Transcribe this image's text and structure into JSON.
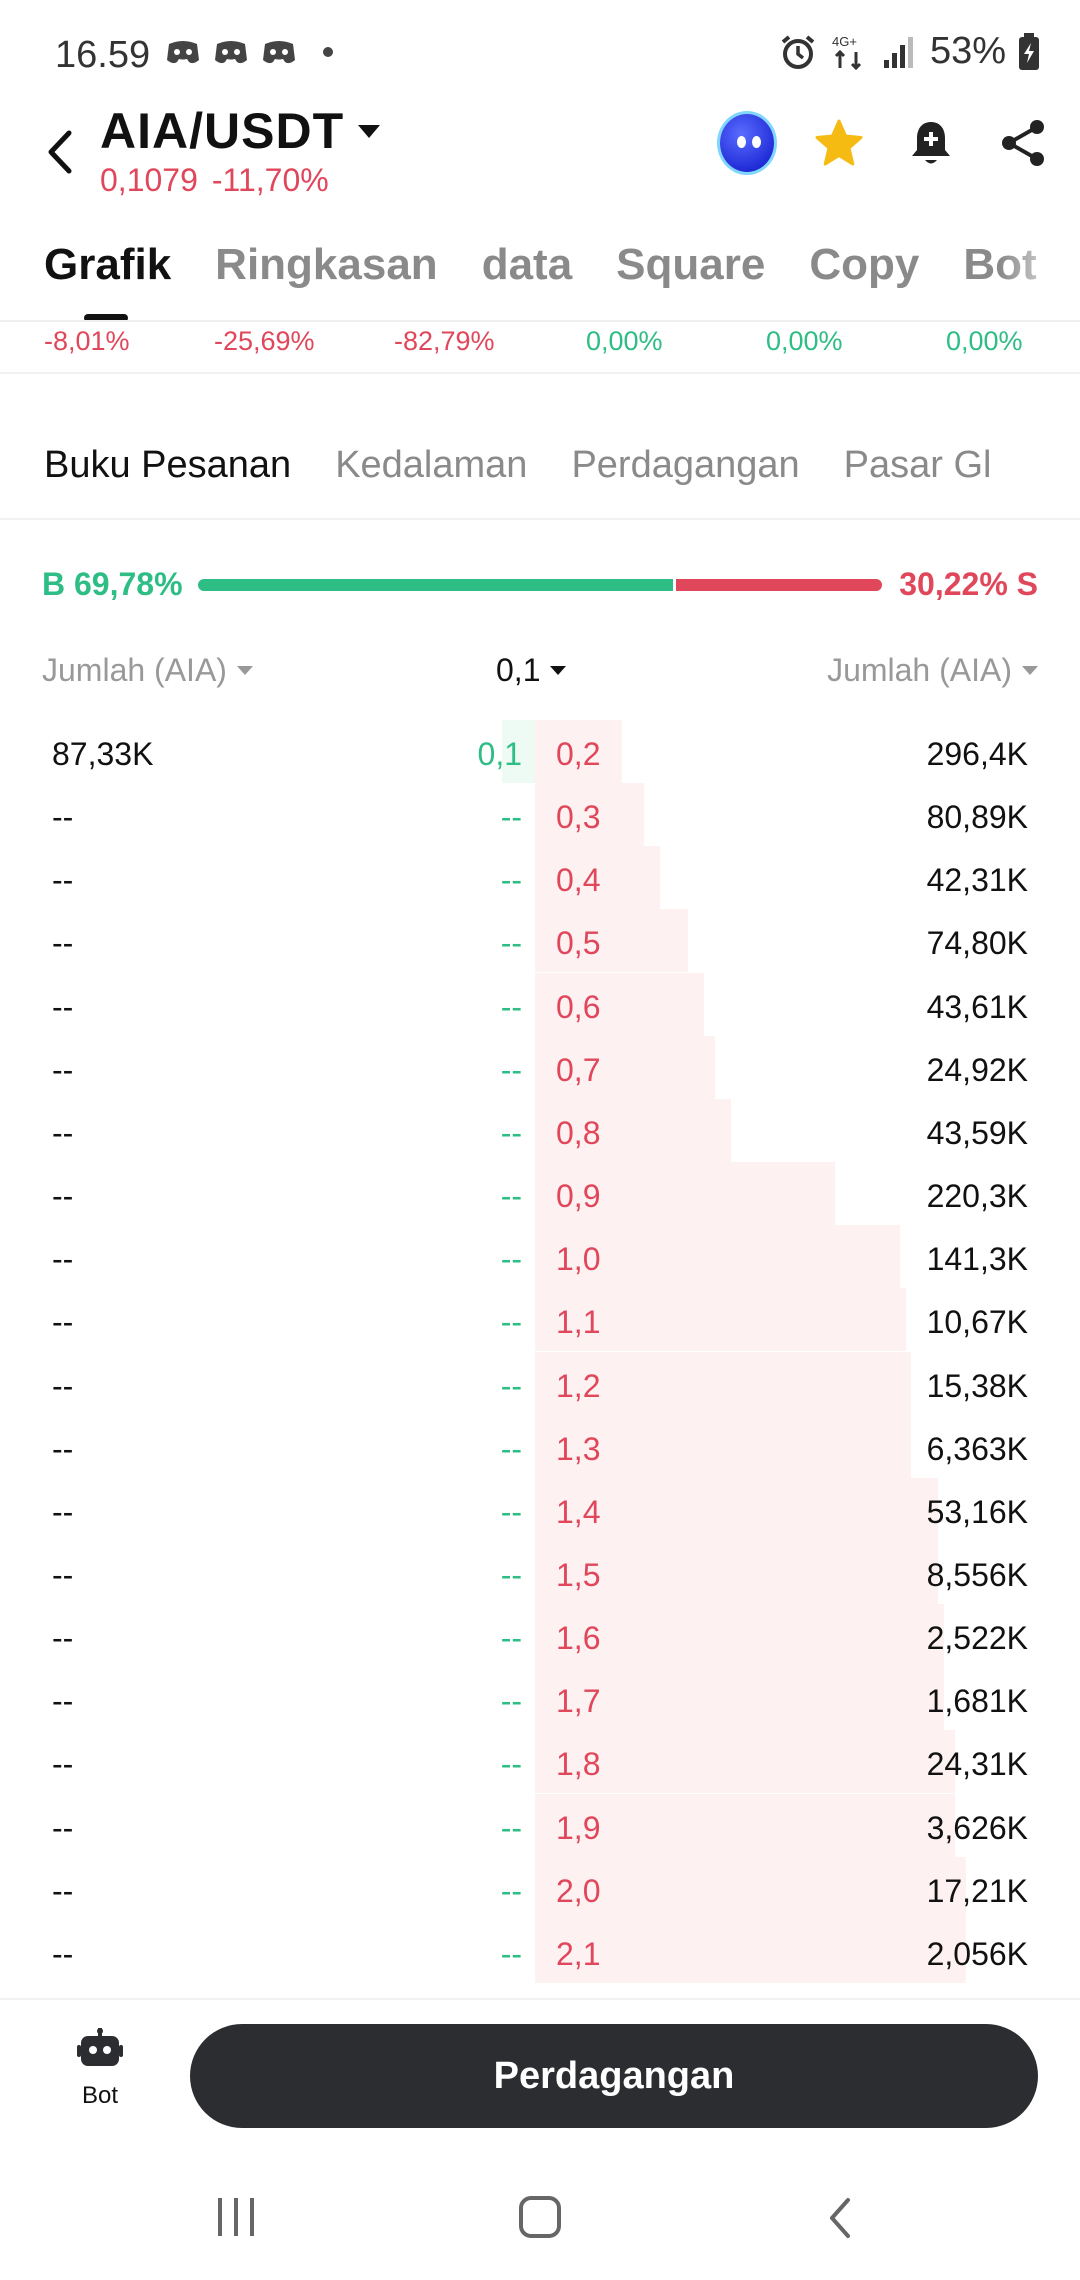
{
  "status_bar": {
    "time": "16.59",
    "network": "4G+",
    "battery": "53%"
  },
  "header": {
    "pair": "AIA/USDT",
    "price": "0,1079",
    "change": "-11,70%",
    "icons": [
      "avatar-icon",
      "star-icon",
      "bell-plus-icon",
      "share-icon"
    ]
  },
  "main_tabs": [
    {
      "label": "Grafik",
      "active": true
    },
    {
      "label": "Ringkasan"
    },
    {
      "label": "data"
    },
    {
      "label": "Square"
    },
    {
      "label": "Copy"
    },
    {
      "label": "Bot"
    }
  ],
  "change_row": [
    {
      "value": "-8,01%",
      "color": "#e0475b"
    },
    {
      "value": "-25,69%",
      "color": "#e0475b"
    },
    {
      "value": "-82,79%",
      "color": "#e0475b"
    },
    {
      "value": "0,00%",
      "color": "#2ebd85"
    },
    {
      "value": "0,00%",
      "color": "#2ebd85"
    },
    {
      "value": "0,00%",
      "color": "#2ebd85"
    }
  ],
  "sub_tabs": [
    {
      "label": "Buku Pesanan",
      "active": true
    },
    {
      "label": "Kedalaman"
    },
    {
      "label": "Perdagangan"
    },
    {
      "label": "Pasar Gl"
    }
  ],
  "ratio": {
    "buy_label": "B 69,78%",
    "sell_label": "30,22% S",
    "buy_fraction": 0.6978
  },
  "orderbook_header": {
    "bid_amount": "Jumlah (AIA)",
    "precision": "0,1",
    "ask_amount": "Jumlah (AIA)"
  },
  "orderbook": {
    "rows": [
      {
        "bid_amount": "87,33K",
        "bid_price": "0,1",
        "ask_price": "0,2",
        "ask_amount": "296,4K",
        "ask_depth": 0.16,
        "bid_depth": 0.06
      },
      {
        "bid_amount": "--",
        "bid_price": "--",
        "ask_price": "0,3",
        "ask_amount": "80,89K",
        "ask_depth": 0.2
      },
      {
        "bid_amount": "--",
        "bid_price": "--",
        "ask_price": "0,4",
        "ask_amount": "42,31K",
        "ask_depth": 0.23
      },
      {
        "bid_amount": "--",
        "bid_price": "--",
        "ask_price": "0,5",
        "ask_amount": "74,80K",
        "ask_depth": 0.28
      },
      {
        "bid_amount": "--",
        "bid_price": "--",
        "ask_price": "0,6",
        "ask_amount": "43,61K",
        "ask_depth": 0.31
      },
      {
        "bid_amount": "--",
        "bid_price": "--",
        "ask_price": "0,7",
        "ask_amount": "24,92K",
        "ask_depth": 0.33
      },
      {
        "bid_amount": "--",
        "bid_price": "--",
        "ask_price": "0,8",
        "ask_amount": "43,59K",
        "ask_depth": 0.36
      },
      {
        "bid_amount": "--",
        "bid_price": "--",
        "ask_price": "0,9",
        "ask_amount": "220,3K",
        "ask_depth": 0.55
      },
      {
        "bid_amount": "--",
        "bid_price": "--",
        "ask_price": "1,0",
        "ask_amount": "141,3K",
        "ask_depth": 0.67
      },
      {
        "bid_amount": "--",
        "bid_price": "--",
        "ask_price": "1,1",
        "ask_amount": "10,67K",
        "ask_depth": 0.68
      },
      {
        "bid_amount": "--",
        "bid_price": "--",
        "ask_price": "1,2",
        "ask_amount": "15,38K",
        "ask_depth": 0.69
      },
      {
        "bid_amount": "--",
        "bid_price": "--",
        "ask_price": "1,3",
        "ask_amount": "6,363K",
        "ask_depth": 0.69
      },
      {
        "bid_amount": "--",
        "bid_price": "--",
        "ask_price": "1,4",
        "ask_amount": "53,16K",
        "ask_depth": 0.74
      },
      {
        "bid_amount": "--",
        "bid_price": "--",
        "ask_price": "1,5",
        "ask_amount": "8,556K",
        "ask_depth": 0.74
      },
      {
        "bid_amount": "--",
        "bid_price": "--",
        "ask_price": "1,6",
        "ask_amount": "2,522K",
        "ask_depth": 0.75
      },
      {
        "bid_amount": "--",
        "bid_price": "--",
        "ask_price": "1,7",
        "ask_amount": "1,681K",
        "ask_depth": 0.75
      },
      {
        "bid_amount": "--",
        "bid_price": "--",
        "ask_price": "1,8",
        "ask_amount": "24,31K",
        "ask_depth": 0.77
      },
      {
        "bid_amount": "--",
        "bid_price": "--",
        "ask_price": "1,9",
        "ask_amount": "3,626K",
        "ask_depth": 0.77
      },
      {
        "bid_amount": "--",
        "bid_price": "--",
        "ask_price": "2,0",
        "ask_amount": "17,21K",
        "ask_depth": 0.79
      },
      {
        "bid_amount": "--",
        "bid_price": "--",
        "ask_price": "2,1",
        "ask_amount": "2,056K",
        "ask_depth": 0.79
      }
    ]
  },
  "action_bar": {
    "bot_label": "Bot",
    "trade_label": "Perdagangan"
  },
  "colors": {
    "buy": "#2ebd85",
    "sell": "#e0475b",
    "ask_depth_bg": "#fdf1f1",
    "bid_depth_bg": "#eefaf4"
  }
}
